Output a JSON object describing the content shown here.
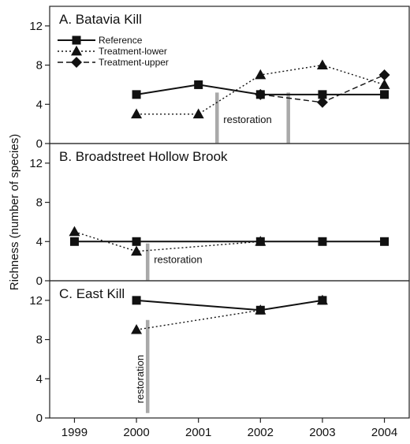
{
  "chart_data": [
    {
      "type": "line",
      "title": "A. Batavia Kill",
      "ylim": [
        0,
        14
      ],
      "yticks": [
        0,
        4,
        8,
        12
      ],
      "grid": false,
      "legend": "top-left",
      "series": [
        {
          "name": "Reference",
          "marker": "square",
          "linestyle": "solid",
          "x": [
            2000,
            2001,
            2002,
            2003,
            2004
          ],
          "values": [
            5,
            6,
            5,
            5,
            5
          ]
        },
        {
          "name": "Treatment-lower",
          "marker": "triangle",
          "linestyle": "dotted",
          "x": [
            2000,
            2001,
            2002,
            2003,
            2004
          ],
          "values": [
            3,
            3,
            7,
            8,
            6
          ]
        },
        {
          "name": "Treatment-upper",
          "marker": "diamond",
          "linestyle": "dashed",
          "x": [
            2002,
            2003,
            2004
          ],
          "values": [
            5,
            4.2,
            7
          ]
        }
      ],
      "annotations": [
        {
          "text": "restoration",
          "orientation": "horizontal"
        }
      ],
      "restoration_markers": [
        {
          "x": 2001.3,
          "from": 0,
          "to": 5.2
        },
        {
          "x": 2002.45,
          "from": 0,
          "to": 5.2
        }
      ]
    },
    {
      "type": "line",
      "title": "B. Broadstreet Hollow Brook",
      "ylim": [
        0,
        14
      ],
      "yticks": [
        0,
        4,
        8,
        12
      ],
      "grid": false,
      "series": [
        {
          "name": "Reference",
          "marker": "square",
          "linestyle": "solid",
          "x": [
            1999,
            2000,
            2002,
            2003,
            2004
          ],
          "values": [
            4,
            4,
            4,
            4,
            4
          ]
        },
        {
          "name": "Treatment-lower",
          "marker": "triangle",
          "linestyle": "dotted",
          "x": [
            1999,
            2000,
            2002
          ],
          "values": [
            5,
            3,
            4
          ]
        }
      ],
      "annotations": [
        {
          "text": "restoration",
          "orientation": "horizontal"
        }
      ],
      "restoration_markers": [
        {
          "x": 2000.18,
          "from": 0,
          "to": 3.8
        }
      ]
    },
    {
      "type": "line",
      "title": "C. East Kill",
      "ylim": [
        0,
        14
      ],
      "yticks": [
        0,
        4,
        8,
        12
      ],
      "grid": false,
      "x_tick_labels": [
        "1999",
        "2000",
        "2001",
        "2002",
        "2003",
        "2004"
      ],
      "series": [
        {
          "name": "Reference",
          "marker": "square",
          "linestyle": "solid",
          "x": [
            2000,
            2002,
            2003
          ],
          "values": [
            12,
            11,
            12
          ]
        },
        {
          "name": "Treatment-lower",
          "marker": "triangle",
          "linestyle": "dotted",
          "x": [
            2000,
            2002,
            2003
          ],
          "values": [
            9,
            11,
            12
          ]
        }
      ],
      "annotations": [
        {
          "text": "restoration",
          "orientation": "vertical"
        }
      ],
      "restoration_markers": [
        {
          "x": 2000.18,
          "from": 0.5,
          "to": 10
        }
      ]
    }
  ],
  "shared": {
    "ylabel": "Richness (number of species)",
    "xlim": [
      1998.6,
      2004.4
    ],
    "xticks": [
      1999,
      2000,
      2001,
      2002,
      2003,
      2004
    ]
  }
}
